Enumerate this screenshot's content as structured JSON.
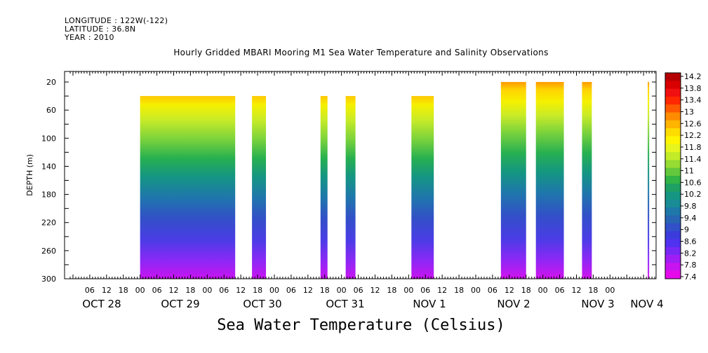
{
  "header": {
    "longitude": "LONGITUDE : 122W(-122)",
    "latitude": "LATITUDE : 36.8N",
    "year": "YEAR : 2010"
  },
  "footer_title": "Sea Water Temperature (Celsius)",
  "chart_data": {
    "type": "heatmap",
    "title": "Hourly Gridded MBARI Mooring M1 Sea Water Temperature and Salinity Observations",
    "ylabel": "DEPTH (m)",
    "ylim": [
      300,
      0
    ],
    "yticks": [
      20,
      60,
      100,
      140,
      180,
      220,
      260,
      300
    ],
    "hour_ticks": [
      "06",
      "12",
      "18",
      "00",
      "06",
      "12",
      "18",
      "00",
      "06",
      "12",
      "18",
      "00",
      "06",
      "12",
      "18",
      "00",
      "06",
      "12",
      "18",
      "00",
      "06",
      "12",
      "18",
      "00",
      "06",
      "12",
      "18",
      "00",
      "06",
      "12",
      "18",
      "00"
    ],
    "day_labels": [
      "OCT 28",
      "OCT 29",
      "OCT 30",
      "OCT 31",
      "NOV  1",
      "NOV  2",
      "NOV  3",
      "NOV  4"
    ],
    "x_hours_start": 0,
    "x_hours_end": 171,
    "data_segments": [
      {
        "start_hour": 24,
        "end_hour": 58,
        "top_depth": 40
      },
      {
        "start_hour": 64,
        "end_hour": 69,
        "top_depth": 40
      },
      {
        "start_hour": 88.5,
        "end_hour": 91,
        "top_depth": 40
      },
      {
        "start_hour": 97.5,
        "end_hour": 101,
        "top_depth": 40
      },
      {
        "start_hour": 121,
        "end_hour": 129,
        "top_depth": 40
      },
      {
        "start_hour": 153,
        "end_hour": 162,
        "top_depth": 20
      },
      {
        "start_hour": 165.5,
        "end_hour": 175.5,
        "top_depth": 20
      },
      {
        "start_hour": 182,
        "end_hour": 185.5,
        "top_depth": 20
      },
      {
        "start_hour": 205.5,
        "end_hour": 207,
        "top_depth": 20
      }
    ],
    "legend": {
      "labels": [
        "14.2",
        "13.8",
        "13.4",
        "13",
        "12.6",
        "12.2",
        "11.8",
        "11.4",
        "11",
        "10.6",
        "10.2",
        "9.8",
        "9.4",
        "9",
        "8.6",
        "8.2",
        "7.8",
        "7.4"
      ],
      "colors": [
        "#b40000",
        "#d80000",
        "#f01010",
        "#ff2800",
        "#ff5a00",
        "#ff8c00",
        "#ffb400",
        "#ffdc00",
        "#fff500",
        "#e6f51e",
        "#c3eb28",
        "#96dc32",
        "#64c83c",
        "#32b446",
        "#1ea064",
        "#149682",
        "#198c96",
        "#1e78aa",
        "#2864b4",
        "#3250c8",
        "#3c3cdc",
        "#5032f0",
        "#7828f5",
        "#a01ef5",
        "#c814f0",
        "#e60aeb"
      ]
    }
  }
}
